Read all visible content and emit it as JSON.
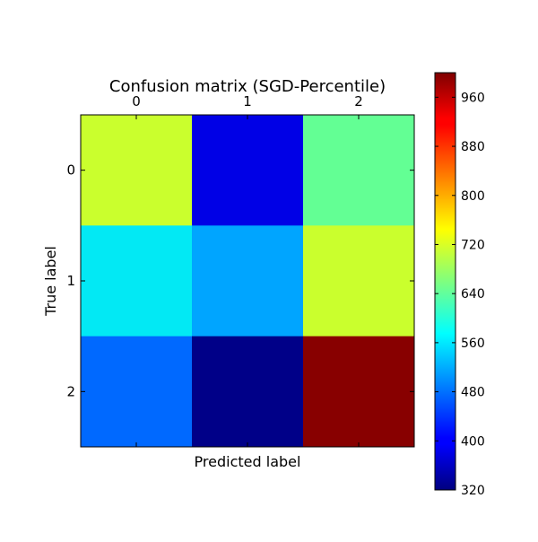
{
  "chart_data": {
    "type": "heatmap",
    "title": "Confusion matrix (SGD-Percentile)",
    "xlabel": "Predicted label",
    "ylabel": "True label",
    "x_categories": [
      "0",
      "1",
      "2"
    ],
    "y_categories": [
      "0",
      "1",
      "2"
    ],
    "values": [
      [
        725,
        380,
        640
      ],
      [
        560,
        515,
        725
      ],
      [
        475,
        325,
        995
      ]
    ],
    "colorscale": "jet",
    "color_range": [
      320,
      1000
    ],
    "colorbar_ticks": [
      320,
      400,
      480,
      560,
      640,
      720,
      800,
      880,
      960
    ],
    "colorbar_tick_labels": [
      "320",
      "400",
      "480",
      "560",
      "640",
      "720",
      "800",
      "880",
      "960"
    ],
    "x_tick_position": "top"
  }
}
